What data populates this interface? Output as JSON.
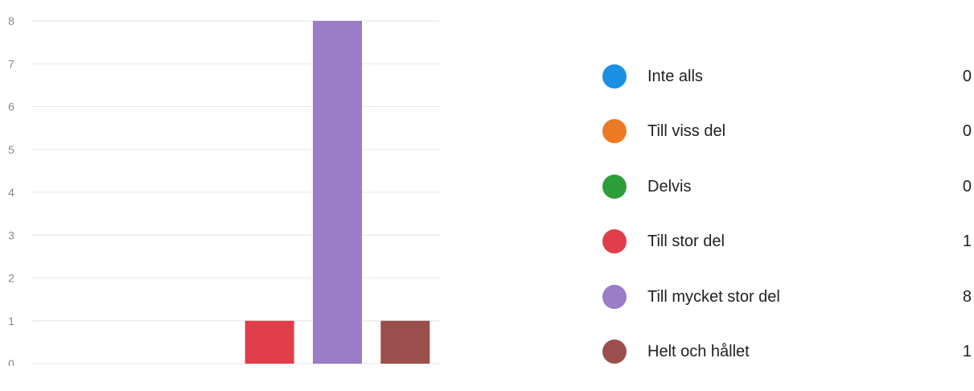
{
  "chart_data": {
    "type": "bar",
    "categories": [
      "Inte alls",
      "Till viss del",
      "Delvis",
      "Till stor del",
      "Till mycket stor del",
      "Helt och hållet"
    ],
    "values": [
      0,
      0,
      0,
      1,
      8,
      1
    ],
    "colors": [
      "#1b8fe4",
      "#ec7a24",
      "#2e9e3a",
      "#e23d4a",
      "#9b7cc6",
      "#9b4f4c"
    ],
    "ylim": [
      0,
      8
    ],
    "yticks": [
      0,
      1,
      2,
      3,
      4,
      5,
      6,
      7,
      8
    ],
    "grid": true,
    "legend_position": "right"
  },
  "legend": {
    "items": [
      {
        "label": "Inte alls",
        "count": "0",
        "color": "#1b8fe4"
      },
      {
        "label": "Till viss del",
        "count": "0",
        "color": "#ec7a24"
      },
      {
        "label": "Delvis",
        "count": "0",
        "color": "#2e9e3a"
      },
      {
        "label": "Till stor del",
        "count": "1",
        "color": "#e23d4a"
      },
      {
        "label": "Till mycket stor del",
        "count": "8",
        "color": "#9b7cc6"
      },
      {
        "label": "Helt och hållet",
        "count": "1",
        "color": "#9b4f4c"
      }
    ]
  }
}
